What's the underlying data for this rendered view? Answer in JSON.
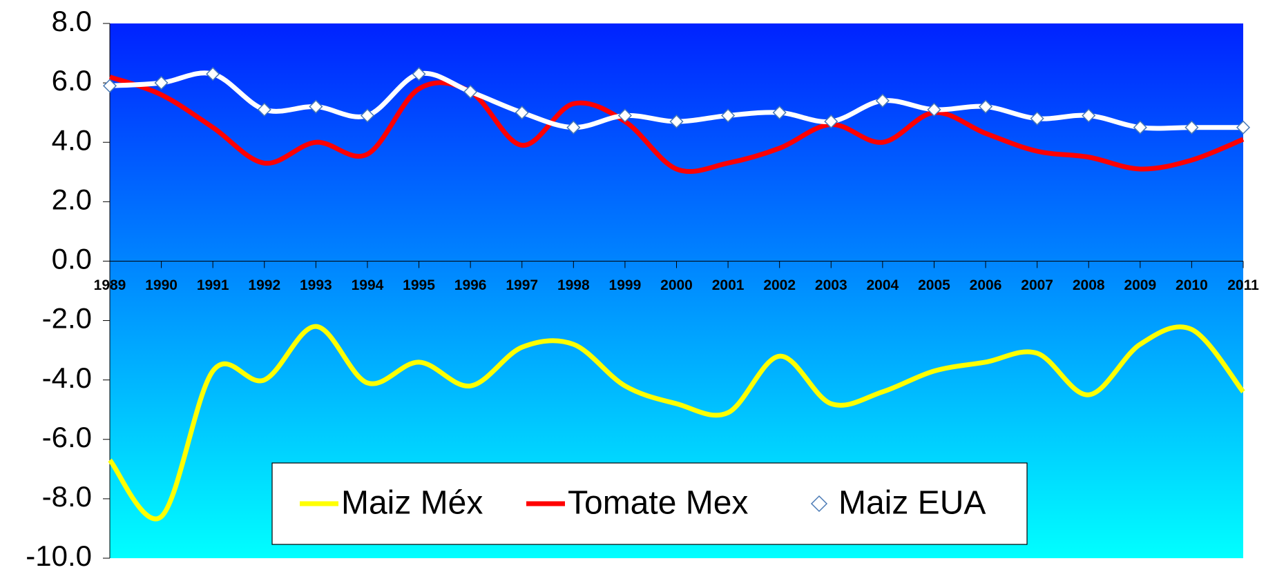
{
  "chart_data": {
    "type": "line",
    "categories": [
      "1989",
      "1990",
      "1991",
      "1992",
      "1993",
      "1994",
      "1995",
      "1996",
      "1997",
      "1998",
      "1999",
      "2000",
      "2001",
      "2002",
      "2003",
      "2004",
      "2005",
      "2006",
      "2007",
      "2008",
      "2009",
      "2010",
      "2011"
    ],
    "series": [
      {
        "name": "Maiz Méx",
        "color": "#ffff00",
        "values": [
          -6.7,
          -8.6,
          -3.7,
          -4.0,
          -2.2,
          -4.1,
          -3.4,
          -4.2,
          -2.9,
          -2.8,
          -4.2,
          -4.8,
          -5.1,
          -3.2,
          -4.8,
          -4.4,
          -3.7,
          -3.4,
          -3.1,
          -4.5,
          -2.8,
          -2.3,
          -4.4
        ]
      },
      {
        "name": "Tomate Mex",
        "color": "#ff0000",
        "values": [
          6.2,
          5.6,
          4.5,
          3.3,
          4.0,
          3.6,
          5.8,
          5.7,
          3.9,
          5.3,
          4.7,
          3.1,
          3.3,
          3.8,
          4.6,
          4.0,
          5.0,
          4.3,
          3.7,
          3.5,
          3.1,
          3.4,
          4.1
        ]
      },
      {
        "name": "Maiz EUA",
        "color": "#ffffff",
        "marker": "diamond",
        "marker_color": "#4a7ab5",
        "values": [
          5.9,
          6.0,
          6.3,
          5.1,
          5.2,
          4.9,
          6.3,
          5.7,
          5.0,
          4.5,
          4.9,
          4.7,
          4.9,
          5.0,
          4.7,
          5.4,
          5.1,
          5.2,
          4.8,
          4.9,
          4.5,
          4.5,
          4.5
        ]
      }
    ],
    "ylim": [
      -10,
      8
    ],
    "yticks": [
      {
        "value": -10,
        "label": "-10.0"
      },
      {
        "value": -8,
        "label": "-8.0"
      },
      {
        "value": -6,
        "label": "-6.0"
      },
      {
        "value": -4,
        "label": "-4.0"
      },
      {
        "value": -2,
        "label": "-2.0"
      },
      {
        "value": 0,
        "label": "0.0"
      },
      {
        "value": 2,
        "label": "2.0"
      },
      {
        "value": 4,
        "label": "4.0"
      },
      {
        "value": 6,
        "label": "6.0"
      },
      {
        "value": 8,
        "label": "8.0"
      }
    ],
    "grid": false,
    "smooth": true,
    "legend": "bottom",
    "background": [
      "#0022ff",
      "#00ffff"
    ]
  }
}
